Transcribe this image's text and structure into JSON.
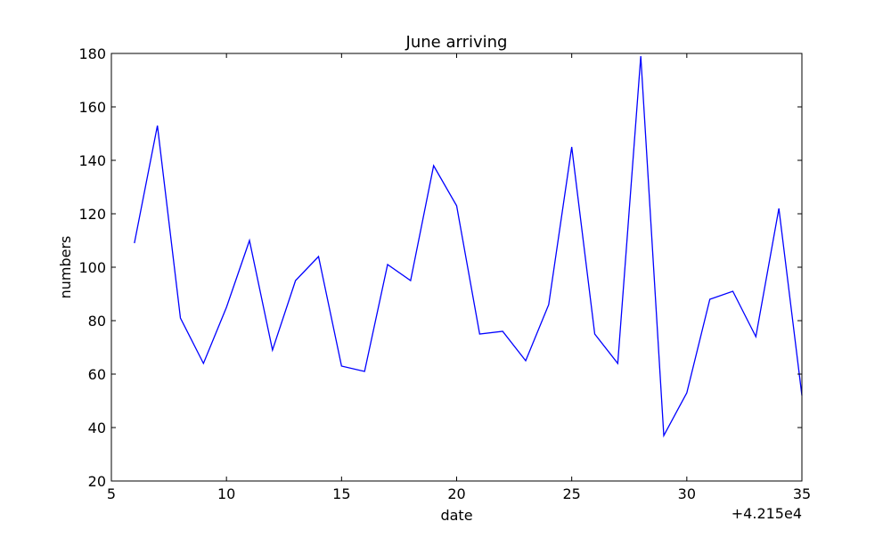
{
  "chart_data": {
    "type": "line",
    "title": "June arriving",
    "xlabel": "date",
    "ylabel": "numbers",
    "x_offset_label": "+4.215e4",
    "xlim": [
      42155,
      42185
    ],
    "ylim": [
      20,
      180
    ],
    "x_ticks": [
      42155,
      42160,
      42165,
      42170,
      42175,
      42180,
      42185
    ],
    "x_tick_labels": [
      "5",
      "10",
      "15",
      "20",
      "25",
      "30",
      "35"
    ],
    "y_ticks": [
      20,
      40,
      60,
      80,
      100,
      120,
      140,
      160,
      180
    ],
    "y_tick_labels": [
      "20",
      "40",
      "60",
      "80",
      "100",
      "120",
      "140",
      "160",
      "180"
    ],
    "grid": false,
    "series": [
      {
        "color": "#0000ff",
        "x": [
          42156,
          42157,
          42158,
          42159,
          42160,
          42161,
          42162,
          42163,
          42164,
          42165,
          42166,
          42167,
          42168,
          42169,
          42170,
          42171,
          42172,
          42173,
          42174,
          42175,
          42176,
          42177,
          42178,
          42179,
          42180,
          42181,
          42182,
          42183,
          42184,
          42185
        ],
        "values": [
          109,
          153,
          81,
          64,
          85,
          110,
          69,
          95,
          104,
          63,
          61,
          101,
          95,
          138,
          123,
          75,
          76,
          65,
          86,
          145,
          75,
          64,
          179,
          37,
          53,
          88,
          91,
          74,
          122,
          52
        ]
      }
    ]
  }
}
